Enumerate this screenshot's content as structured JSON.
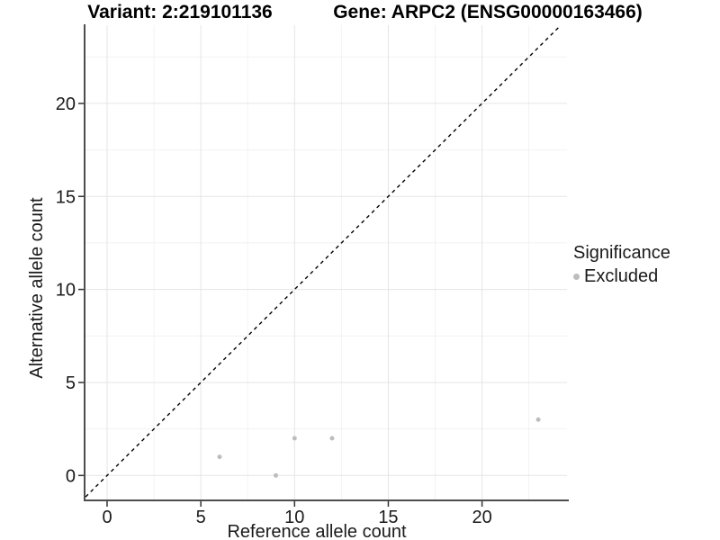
{
  "header": {
    "title_left": "Variant: 2:219101136",
    "title_right": "Gene: ARPC2 (ENSG00000163466)"
  },
  "chart_data": {
    "type": "scatter",
    "xlabel": "Reference allele count",
    "ylabel": "Alternative allele count",
    "x_ticks": [
      0,
      5,
      10,
      15,
      20
    ],
    "y_ticks": [
      0,
      5,
      10,
      15,
      20
    ],
    "x_minor_ticks": [
      2.5,
      7.5,
      12.5,
      17.5,
      22.5
    ],
    "y_minor_ticks": [
      2.5,
      7.5,
      12.5,
      17.5,
      22.5
    ],
    "xlim": [
      -1.15,
      24.55
    ],
    "ylim": [
      -1.3,
      24.2
    ],
    "grid": true,
    "series": [
      {
        "name": "Excluded",
        "points": [
          [
            6,
            1
          ],
          [
            9,
            0
          ],
          [
            10,
            2
          ],
          [
            12,
            2
          ],
          [
            23,
            3
          ]
        ],
        "color": "#bdbdbd"
      }
    ],
    "identity_line": {
      "equation": "y = x",
      "style": "dashed",
      "color": "#000000"
    },
    "legend": {
      "position": "right",
      "title": "Significance",
      "items": [
        {
          "label": "Excluded",
          "color": "#bdbdbd",
          "marker": "circle"
        }
      ]
    }
  },
  "legend": {
    "title": "Significance",
    "item_label": "Excluded",
    "marker_color": "#bdbdbd"
  },
  "colors": {
    "point": "#bdbdbd",
    "axis_line": "#4d4d4d",
    "tick_mark": "#333333",
    "tick_label": "#1a1a1a",
    "grid_major": "#e5e5e5",
    "grid_minor": "#f2f2f2",
    "identity_line": "#000000"
  }
}
